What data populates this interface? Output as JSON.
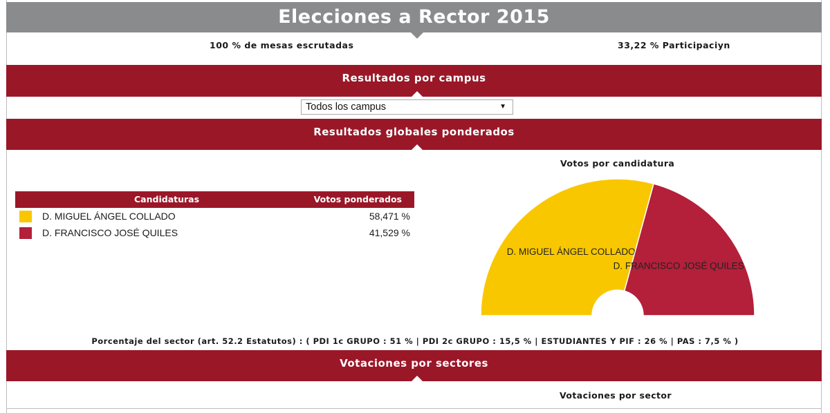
{
  "header": {
    "title": "Elecciones a Rector 2015",
    "mesas": "100 % de mesas escrutadas",
    "participacion": "33,22 % Participaciyn"
  },
  "sections": {
    "campus": "Resultados por campus",
    "global": "Resultados globales ponderados",
    "sectores": "Votaciones por sectores"
  },
  "campus_select": {
    "selected": "Todos los campus",
    "arrow": "▼"
  },
  "table": {
    "col_candidaturas": "Candidaturas",
    "col_votos": "Votos ponderados",
    "rows": [
      {
        "name": "D. MIGUEL ÁNGEL COLLADO",
        "pct": "58,471 %",
        "color": "#f9c700"
      },
      {
        "name": "D. FRANCISCO JOSÉ QUILES",
        "pct": "41,529 %",
        "color": "#b41f3a"
      }
    ]
  },
  "chart_data": {
    "type": "pie",
    "variant": "semicircle-donut",
    "title": "Votos por candidatura",
    "slices": [
      {
        "label": "D. MIGUEL ÁNGEL COLLADO",
        "value": 58.471,
        "color": "#f9c700"
      },
      {
        "label": "D. FRANCISCO JOSÉ QUILES",
        "value": 41.529,
        "color": "#b41f3a"
      }
    ]
  },
  "sector_note": "Porcentaje del sector (art. 52.2 Estatutos) : ( PDI 1c GRUPO : 51 % | PDI 2c GRUPO : 15,5 % | ESTUDIANTES Y PIF : 26 % | PAS : 7,5 % )",
  "bottom_chart_title": "Votaciones por sector"
}
